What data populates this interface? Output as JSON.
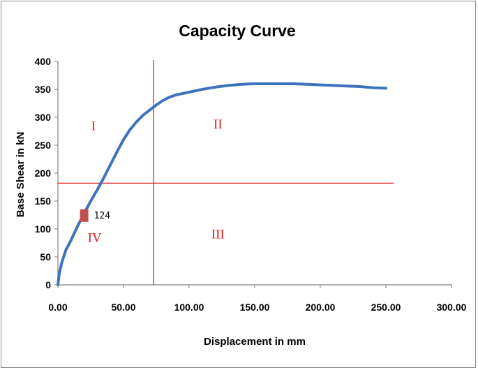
{
  "chart_data": {
    "type": "line",
    "title": "Capacity Curve",
    "xlabel": "Displacement in mm",
    "ylabel": "Base Shear in kN",
    "xlim": [
      0,
      300
    ],
    "ylim": [
      0,
      400
    ],
    "x_ticks": [
      "0.00",
      "50.00",
      "100.00",
      "150.00",
      "200.00",
      "250.00",
      "300.00"
    ],
    "y_ticks": [
      "0",
      "50",
      "100",
      "150",
      "200",
      "250",
      "300",
      "350",
      "400"
    ],
    "grid": false,
    "legend": "none",
    "series": [
      {
        "color": "#3d73bd",
        "x": [
          0,
          1,
          3,
          6,
          10,
          15,
          20,
          25,
          30,
          35,
          40,
          45,
          50,
          55,
          60,
          65,
          70,
          75,
          80,
          85,
          90,
          100,
          110,
          120,
          130,
          140,
          150,
          160,
          170,
          180,
          190,
          200,
          210,
          220,
          230,
          240,
          250
        ],
        "y": [
          0,
          20,
          40,
          62,
          80,
          105,
          128,
          150,
          170,
          192,
          215,
          238,
          260,
          278,
          292,
          304,
          313,
          322,
          330,
          336,
          340,
          345,
          350,
          354,
          357,
          359,
          360,
          360,
          360,
          360,
          359,
          358,
          357,
          356,
          355,
          353,
          352
        ]
      }
    ],
    "marked_point": {
      "x": 20,
      "y": 124,
      "label": "124",
      "color": "#c0504d"
    },
    "reference_lines": {
      "color": "#e02020",
      "vertical_x": 73,
      "horizontal_y": 182,
      "horizontal_xmax": 256
    },
    "regions": [
      {
        "label": "I",
        "x": 27,
        "y": 277
      },
      {
        "label": "II",
        "x": 122,
        "y": 280
      },
      {
        "label": "III",
        "x": 122,
        "y": 83
      },
      {
        "label": "IV",
        "x": 28,
        "y": 77
      }
    ]
  }
}
